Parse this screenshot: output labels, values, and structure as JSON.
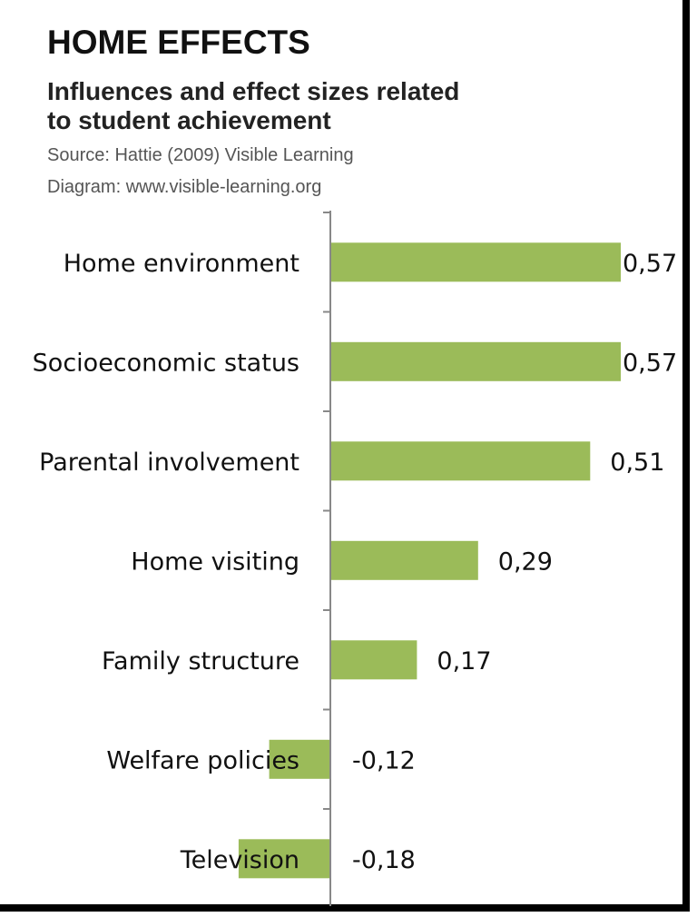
{
  "header": {
    "title": "HOME EFFECTS",
    "subtitle_line1": "Influences and effect sizes related",
    "subtitle_line2": "to student achievement",
    "source": "Source: Hattie (2009) Visible Learning",
    "diagram": "Diagram: www.visible-learning.org"
  },
  "colors": {
    "bar": "#9bbb59",
    "axis": "#888888",
    "text": "#111111"
  },
  "chart_data": {
    "type": "bar",
    "orientation": "horizontal",
    "title": "HOME EFFECTS",
    "subtitle": "Influences and effect sizes related to student achievement",
    "categories": [
      "Home environment",
      "Socioeconomic status",
      "Parental involvement",
      "Home visiting",
      "Family structure",
      "Welfare policies",
      "Television"
    ],
    "values": [
      0.57,
      0.57,
      0.51,
      0.29,
      0.17,
      -0.12,
      -0.18
    ],
    "value_labels": [
      "0,57",
      "0,57",
      "0,51",
      "0,29",
      "0,17",
      "-0,12",
      "-0,18"
    ],
    "xlim": [
      -0.18,
      0.57
    ],
    "grid": false,
    "legend": "none"
  }
}
